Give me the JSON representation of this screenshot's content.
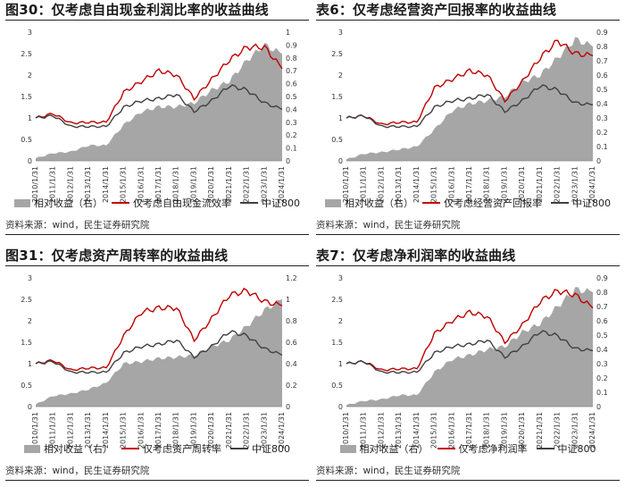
{
  "colors": {
    "area": "#a6a6a6",
    "strategy": "#c00000",
    "index": "#404040"
  },
  "panels": [
    {
      "title": "图30：仅考虑自由现金利润比率的收益曲线",
      "source": "资料来源：wind，民生证券研究院",
      "legend": {
        "area": "相对收益（右）",
        "strategy": "仅考虑自由现金流效率",
        "index": "中证800"
      },
      "right_ticks": [
        "0",
        "0.1",
        "0.2",
        "0.3",
        "0.4",
        "0.5",
        "0.6",
        "0.7",
        "0.8",
        "0.9",
        "1"
      ]
    },
    {
      "title": "表6：仅考虑经营资产回报率的收益曲线",
      "source": "资料来源：wind，民生证券研究院",
      "legend": {
        "area": "相对收益（右）",
        "strategy": "仅考虑经营资产回报率",
        "index": "中证800"
      },
      "right_ticks": [
        "0",
        "0.1",
        "0.2",
        "0.3",
        "0.4",
        "0.5",
        "0.6",
        "0.7",
        "0.8",
        "0.9"
      ]
    },
    {
      "title": "图31：仅考虑资产周转率的收益曲线",
      "source": "资料来源：wind，民生证券研究院",
      "legend": {
        "area": "相对收益（右）",
        "strategy": "仅考虑资产周转率",
        "index": "中证800"
      },
      "right_ticks": [
        "0",
        "0.2",
        "0.4",
        "0.6",
        "0.8",
        "1",
        "1.2"
      ]
    },
    {
      "title": "表7：仅考虑净利润率的收益曲线",
      "source": "资料来源：wind，民生证券研究院",
      "legend": {
        "area": "相对收益（右）",
        "strategy": "仅考虑净利润率",
        "index": "中证800"
      },
      "right_ticks": [
        "0",
        "0.1",
        "0.2",
        "0.3",
        "0.4",
        "0.5",
        "0.6",
        "0.7",
        "0.8",
        "0.9"
      ]
    }
  ],
  "chart_data": [
    {
      "type": "line",
      "x": [
        "2010/1/31",
        "2011/1/31",
        "2012/1/31",
        "2013/1/31",
        "2014/1/31",
        "2015/1/31",
        "2016/1/31",
        "2017/1/31",
        "2018/1/31",
        "2019/1/31",
        "2020/1/31",
        "2021/1/31",
        "2022/1/31",
        "2023/1/31",
        "2024/1/31"
      ],
      "ylim_left": [
        0,
        3
      ],
      "yticks_left": [
        "0",
        "0.5",
        "1",
        "1.5",
        "2",
        "2.5",
        "3"
      ],
      "ylim_right": [
        0,
        1
      ],
      "series": [
        {
          "name": "相对收益（右）",
          "axis": "right",
          "type": "area",
          "values": [
            0.02,
            0.06,
            0.07,
            0.12,
            0.12,
            0.28,
            0.38,
            0.42,
            0.42,
            0.45,
            0.55,
            0.62,
            0.78,
            0.9,
            0.83
          ]
        },
        {
          "name": "仅考虑自由现金流效率",
          "axis": "left",
          "values": [
            1.0,
            1.1,
            0.88,
            0.9,
            0.9,
            1.6,
            1.85,
            2.1,
            2.0,
            1.45,
            1.9,
            2.35,
            2.65,
            2.65,
            2.15
          ]
        },
        {
          "name": "中证800",
          "axis": "left",
          "values": [
            1.0,
            1.05,
            0.8,
            0.8,
            0.8,
            1.25,
            1.4,
            1.45,
            1.55,
            1.15,
            1.4,
            1.75,
            1.65,
            1.35,
            1.2
          ]
        }
      ]
    },
    {
      "type": "line",
      "x": [
        "2010/1/31",
        "2011/1/31",
        "2012/1/31",
        "2013/1/31",
        "2014/1/31",
        "2015/1/31",
        "2016/1/31",
        "2017/1/31",
        "2018/1/31",
        "2019/1/31",
        "2020/1/31",
        "2021/1/31",
        "2022/1/31",
        "2023/1/31",
        "2024/1/31"
      ],
      "ylim_left": [
        0,
        3
      ],
      "yticks_left": [
        "0",
        "0.5",
        "1",
        "1.5",
        "2",
        "2.5",
        "3"
      ],
      "ylim_right": [
        0,
        0.9
      ],
      "series": [
        {
          "name": "相对收益（右）",
          "axis": "right",
          "type": "area",
          "values": [
            0.01,
            0.05,
            0.06,
            0.08,
            0.1,
            0.22,
            0.35,
            0.4,
            0.42,
            0.45,
            0.55,
            0.6,
            0.72,
            0.85,
            0.8
          ]
        },
        {
          "name": "仅考虑经营资产回报率",
          "axis": "left",
          "values": [
            1.0,
            1.05,
            0.85,
            0.9,
            0.9,
            1.7,
            1.9,
            2.1,
            2.0,
            1.4,
            1.85,
            2.4,
            2.8,
            2.5,
            2.45
          ]
        },
        {
          "name": "中证800",
          "axis": "left",
          "values": [
            1.0,
            1.05,
            0.8,
            0.8,
            0.8,
            1.25,
            1.4,
            1.45,
            1.55,
            1.15,
            1.4,
            1.75,
            1.65,
            1.35,
            1.3
          ]
        }
      ]
    },
    {
      "type": "line",
      "x": [
        "2010/1/31",
        "2011/1/31",
        "2012/1/31",
        "2013/1/31",
        "2014/1/31",
        "2015/1/31",
        "2016/1/31",
        "2017/1/31",
        "2018/1/31",
        "2019/1/31",
        "2020/1/31",
        "2021/1/31",
        "2022/1/31",
        "2023/1/31",
        "2024/1/31"
      ],
      "ylim_left": [
        0,
        3
      ],
      "yticks_left": [
        "0",
        "0.5",
        "1",
        "1.5",
        "2",
        "2.5",
        "3"
      ],
      "ylim_right": [
        0,
        1.2
      ],
      "series": [
        {
          "name": "相对收益（右）",
          "axis": "right",
          "type": "area",
          "values": [
            0.02,
            0.1,
            0.12,
            0.16,
            0.22,
            0.4,
            0.42,
            0.45,
            0.46,
            0.48,
            0.56,
            0.62,
            0.75,
            0.9,
            1.0
          ]
        },
        {
          "name": "仅考虑资产周转率",
          "axis": "left",
          "values": [
            1.0,
            1.08,
            0.85,
            0.9,
            0.9,
            1.65,
            2.2,
            2.3,
            2.3,
            1.55,
            2.05,
            2.6,
            2.7,
            2.45,
            2.35
          ]
        },
        {
          "name": "中证800",
          "axis": "left",
          "values": [
            1.0,
            1.05,
            0.8,
            0.8,
            0.8,
            1.25,
            1.4,
            1.45,
            1.55,
            1.15,
            1.4,
            1.75,
            1.65,
            1.35,
            1.2
          ]
        }
      ]
    },
    {
      "type": "line",
      "x": [
        "2010/1/31",
        "2011/1/31",
        "2012/1/31",
        "2013/1/31",
        "2014/1/31",
        "2015/1/31",
        "2016/1/31",
        "2017/1/31",
        "2018/1/31",
        "2019/1/31",
        "2020/1/31",
        "2021/1/31",
        "2022/1/31",
        "2023/1/31",
        "2024/1/31"
      ],
      "ylim_left": [
        0,
        3
      ],
      "yticks_left": [
        "0",
        "0.5",
        "1",
        "1.5",
        "2",
        "2.5",
        "3"
      ],
      "ylim_right": [
        0,
        0.9
      ],
      "series": [
        {
          "name": "相对收益（右）",
          "axis": "right",
          "type": "area",
          "values": [
            0.01,
            0.04,
            0.05,
            0.08,
            0.08,
            0.24,
            0.33,
            0.36,
            0.4,
            0.42,
            0.52,
            0.58,
            0.7,
            0.82,
            0.8
          ]
        },
        {
          "name": "仅考虑净利润率",
          "axis": "left",
          "values": [
            1.0,
            1.05,
            0.85,
            0.88,
            0.88,
            1.7,
            2.0,
            2.2,
            2.1,
            1.5,
            1.9,
            2.45,
            2.7,
            2.6,
            2.3
          ]
        },
        {
          "name": "中证800",
          "axis": "left",
          "values": [
            1.0,
            1.05,
            0.8,
            0.8,
            0.8,
            1.25,
            1.4,
            1.45,
            1.55,
            1.15,
            1.4,
            1.75,
            1.65,
            1.35,
            1.3
          ]
        }
      ]
    }
  ]
}
